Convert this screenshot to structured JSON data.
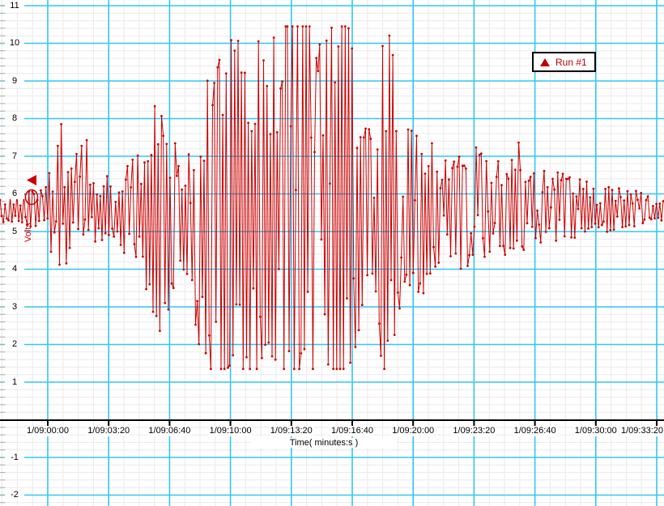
{
  "colors": {
    "trace": "#CC0000",
    "major_grid": "#34C6F4",
    "minor_grid": "#EAEAEA",
    "axis_line": "#000000",
    "edge_ticks": "#AAAAAA",
    "label_text": "#000000",
    "legend_text": "#CC0000"
  },
  "legend": {
    "label": "Run #1",
    "marker": "red-triangle-up"
  },
  "y_axis": {
    "title": "Volts",
    "tick_values": [
      11,
      10,
      9,
      8,
      7,
      6,
      5,
      4,
      3,
      2,
      1,
      -1,
      -2
    ]
  },
  "x_axis": {
    "title": "Time( minutes:s )",
    "tick_labels": [
      "1/09:00:00",
      "1/09:03:20",
      "1/09:06:40",
      "1/09:10:00",
      "1/09:13:20",
      "1/09:16:40",
      "1/09:20:00",
      "1/09:23:20",
      "1/09:26:40",
      "1/09:30:00",
      "1/09:33:20"
    ],
    "tick_seconds": [
      0,
      200,
      400,
      600,
      800,
      1000,
      1200,
      1400,
      1600,
      1800,
      2000
    ]
  },
  "pointer_marker": {
    "volts": 6.35,
    "shape": "left-triangle"
  },
  "oval_annotation": {
    "volts": 5.9
  },
  "chart_data": {
    "type": "line",
    "title": "",
    "series_name": "Run #1",
    "xlabel": "Time( minutes:s )",
    "ylabel": "Volts",
    "ylim": [
      -2,
      11
    ],
    "grid": "on",
    "legend_position": "top-right",
    "marker": "dot",
    "line_color": "#CC0000",
    "x_tick_labels": [
      "1/09:00:00",
      "1/09:03:20",
      "1/09:06:40",
      "1/09:10:00",
      "1/09:13:20",
      "1/09:16:40",
      "1/09:20:00",
      "1/09:23:20",
      "1/09:26:40",
      "1/09:30:00",
      "1/09:33:20"
    ],
    "x_tick_interval_seconds": 200,
    "baseline_volts": 5.55,
    "clip_low_volts": 1.35,
    "clip_high_volts": 10.45,
    "envelope": {
      "note": "amplitude envelope of the noisy burst waveform; t in seconds relative to 1/09:00:00",
      "t_seconds": [
        -157,
        -104,
        -51,
        -11,
        16,
        43,
        69,
        96,
        122,
        149,
        189,
        229,
        269,
        295,
        322,
        348,
        375,
        402,
        428,
        455,
        481,
        508,
        535,
        561,
        588,
        614,
        641,
        668,
        694,
        721,
        747,
        774,
        801,
        827,
        854,
        880,
        907,
        934,
        960,
        987,
        1013,
        1040,
        1066,
        1093,
        1120,
        1146,
        1173,
        1199,
        1226,
        1253,
        1279,
        1306,
        1332,
        1359,
        1386,
        1412,
        1439,
        1465,
        1492,
        1518,
        1545,
        1572,
        1598,
        1625,
        1651,
        1678,
        1704,
        1731,
        1758,
        1784,
        1811,
        1837,
        1864,
        1890,
        1917,
        1944,
        1970,
        1997,
        2023
      ],
      "min_volts": [
        5.2,
        5.1,
        5.1,
        4.7,
        4.3,
        3.6,
        4.4,
        4.2,
        4.2,
        4.6,
        4.8,
        4.5,
        4.3,
        3.9,
        3.3,
        2.2,
        1.9,
        3.1,
        3.7,
        3.5,
        2.7,
        1.5,
        1.35,
        1.35,
        1.35,
        1.6,
        1.35,
        1.35,
        1.35,
        2.2,
        1.35,
        1.35,
        1.35,
        1.35,
        1.35,
        1.35,
        1.6,
        1.35,
        1.35,
        1.35,
        2.0,
        3.2,
        2.6,
        1.35,
        1.35,
        2.6,
        3.0,
        3.2,
        3.3,
        2.9,
        3.4,
        4.0,
        3.9,
        4.0,
        4.0,
        4.2,
        4.1,
        4.3,
        4.3,
        4.4,
        4.4,
        4.5,
        4.6,
        4.6,
        4.7,
        4.7,
        4.7,
        4.8,
        4.9,
        4.9,
        5.0,
        4.7,
        4.9,
        5.1,
        5.1,
        5.1,
        5.2,
        5.2,
        5.2
      ],
      "max_volts": [
        5.9,
        6.0,
        6.1,
        6.4,
        6.7,
        8.1,
        7.0,
        7.3,
        7.7,
        6.7,
        6.5,
        6.6,
        6.9,
        7.2,
        7.7,
        9.2,
        8.7,
        7.5,
        8.1,
        7.4,
        7.7,
        9.0,
        10.45,
        10.45,
        10.45,
        9.8,
        10.45,
        10.45,
        10.45,
        8.8,
        10.45,
        10.45,
        10.45,
        10.45,
        10.45,
        10.45,
        9.9,
        10.45,
        10.45,
        10.45,
        9.2,
        7.7,
        8.3,
        10.45,
        10.3,
        9.1,
        8.0,
        7.7,
        7.6,
        7.5,
        7.2,
        7.0,
        6.9,
        7.1,
        7.1,
        7.3,
        7.0,
        7.0,
        6.9,
        6.9,
        7.4,
        6.8,
        6.7,
        6.7,
        6.6,
        6.6,
        6.5,
        6.4,
        6.4,
        6.3,
        6.3,
        6.3,
        6.2,
        6.1,
        6.1,
        6.1,
        6.0,
        6.0,
        6.0
      ]
    }
  }
}
